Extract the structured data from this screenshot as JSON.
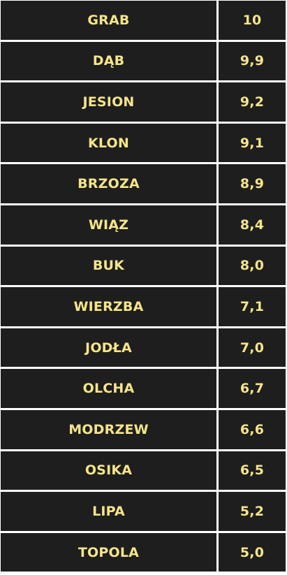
{
  "table": {
    "rows": [
      {
        "name": "GRAB",
        "value": "10"
      },
      {
        "name": "DĄB",
        "value": "9,9"
      },
      {
        "name": "JESION",
        "value": "9,2"
      },
      {
        "name": "KLON",
        "value": "9,1"
      },
      {
        "name": "BRZOZA",
        "value": "8,9"
      },
      {
        "name": "WIĄZ",
        "value": "8,4"
      },
      {
        "name": "BUK",
        "value": "8,0"
      },
      {
        "name": "WIERZBA",
        "value": "7,1"
      },
      {
        "name": "JODŁA",
        "value": "7,0"
      },
      {
        "name": "OLCHA",
        "value": "6,7"
      },
      {
        "name": "MODRZEW",
        "value": "6,6"
      },
      {
        "name": "OSIKA",
        "value": "6,5"
      },
      {
        "name": "LIPA",
        "value": "5,2"
      },
      {
        "name": "TOPOLA",
        "value": "5,0"
      }
    ]
  }
}
